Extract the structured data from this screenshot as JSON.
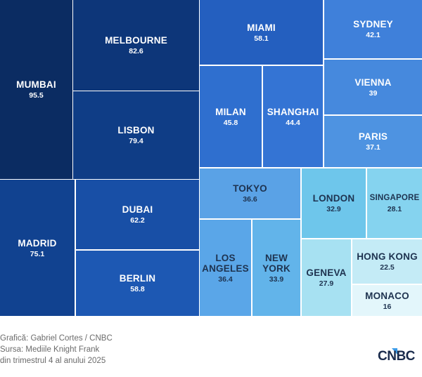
{
  "chart_data": {
    "type": "treemap",
    "title": "",
    "items": [
      {
        "name": "MUMBAI",
        "value": 95.5,
        "color": "#0b2c62",
        "text": "#ffffff"
      },
      {
        "name": "MELBOURNE",
        "value": 82.6,
        "color": "#0d3679",
        "text": "#ffffff"
      },
      {
        "name": "LISBON",
        "value": 79.4,
        "color": "#0f3d86",
        "text": "#ffffff"
      },
      {
        "name": "MADRID",
        "value": 75.1,
        "color": "#114290",
        "text": "#ffffff"
      },
      {
        "name": "DUBAI",
        "value": 62.2,
        "color": "#184fa6",
        "text": "#ffffff"
      },
      {
        "name": "BERLIN",
        "value": 58.8,
        "color": "#1d58b3",
        "text": "#ffffff"
      },
      {
        "name": "MIAMI",
        "value": 58.1,
        "color": "#245fbf",
        "text": "#ffffff"
      },
      {
        "name": "MILAN",
        "value": 45.8,
        "color": "#2f6fcf",
        "text": "#ffffff"
      },
      {
        "name": "SHANGHAI",
        "value": 44.4,
        "color": "#3474d4",
        "text": "#ffffff"
      },
      {
        "name": "SYDNEY",
        "value": 42.1,
        "color": "#3f80da",
        "text": "#ffffff"
      },
      {
        "name": "VIENNA",
        "value": 39,
        "color": "#4689dd",
        "text": "#ffffff"
      },
      {
        "name": "PARIS",
        "value": 37.1,
        "color": "#4e93e1",
        "text": "#ffffff"
      },
      {
        "name": "TOKYO",
        "value": 36.6,
        "color": "#5aa2e6",
        "text": "#1e3350"
      },
      {
        "name": "LOS ANGELES",
        "value": 36.4,
        "color": "#5aa6e8",
        "text": "#1e3350"
      },
      {
        "name": "NEW YORK",
        "value": 33.9,
        "color": "#62b4ea",
        "text": "#1e3350"
      },
      {
        "name": "LONDON",
        "value": 32.9,
        "color": "#6ec6eb",
        "text": "#1e3350"
      },
      {
        "name": "SINGAPORE",
        "value": 28.1,
        "color": "#85d3ef",
        "text": "#1e3350"
      },
      {
        "name": "GENEVA",
        "value": 27.9,
        "color": "#a7e1f2",
        "text": "#1e3350"
      },
      {
        "name": "HONG KONG",
        "value": 22.5,
        "color": "#c4ebf6",
        "text": "#1e3350"
      },
      {
        "name": "MONACO",
        "value": 16,
        "color": "#e3f6fb",
        "text": "#1e3350"
      }
    ]
  },
  "footer": {
    "line1": "Grafică: Gabriel Cortes / CNBC",
    "line2": "Sursa: Mediile Knight Frank",
    "line3": "din trimestrul 4 al anului 2025"
  },
  "logo": {
    "text": "CNBC"
  }
}
